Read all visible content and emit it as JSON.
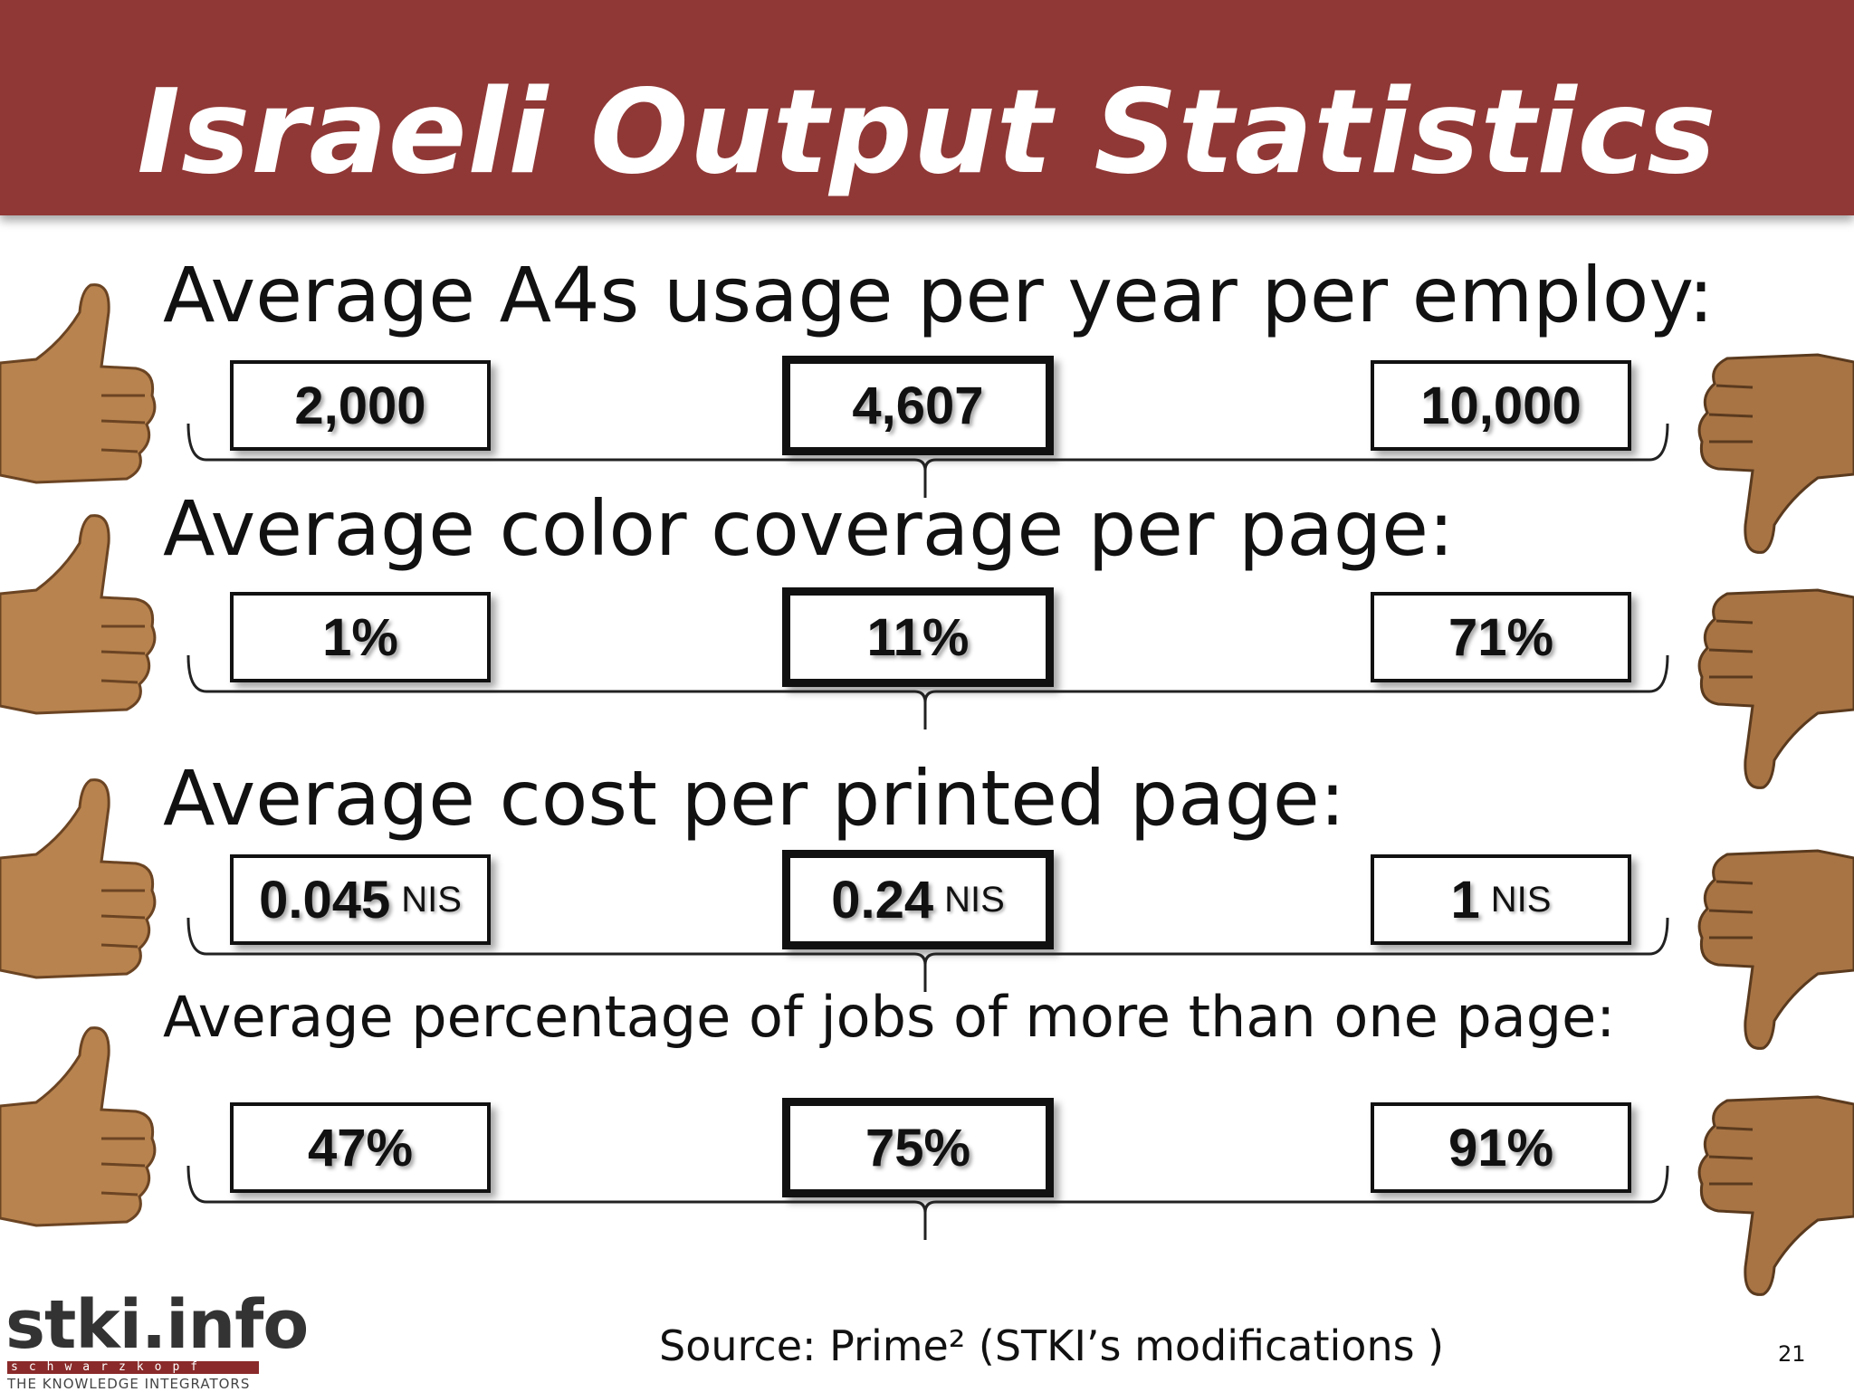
{
  "slide": {
    "title": "Israeli Output Statistics",
    "source": "Source: Prime² (STKI’s modifications )",
    "page_number": "21"
  },
  "logo": {
    "main": "stki.info",
    "bar": "schwarzkopf",
    "sub": "THE KNOWLEDGE INTEGRATORS"
  },
  "metrics": [
    {
      "heading": "Average A4s usage per year per employ:",
      "low": {
        "value": "2,000",
        "unit": ""
      },
      "avg": {
        "value": "4,607",
        "unit": ""
      },
      "high": {
        "value": "10,000",
        "unit": ""
      }
    },
    {
      "heading": "Average color coverage per page:",
      "low": {
        "value": "1%",
        "unit": ""
      },
      "avg": {
        "value": "11%",
        "unit": ""
      },
      "high": {
        "value": "71%",
        "unit": ""
      }
    },
    {
      "heading": "Average cost per printed page:",
      "low": {
        "value": "0.045",
        "unit": "NIS"
      },
      "avg": {
        "value": "0.24",
        "unit": "NIS"
      },
      "high": {
        "value": "1",
        "unit": "NIS"
      }
    },
    {
      "heading": "Average percentage of jobs of more than one page:",
      "low": {
        "value": "47%",
        "unit": ""
      },
      "avg": {
        "value": "75%",
        "unit": ""
      },
      "high": {
        "value": "91%",
        "unit": ""
      }
    }
  ],
  "colors": {
    "banner": "#903836",
    "hand_skin": "#b8834e"
  },
  "icons": {
    "left": "thumbs-up-icon",
    "right": "thumbs-down-icon"
  }
}
